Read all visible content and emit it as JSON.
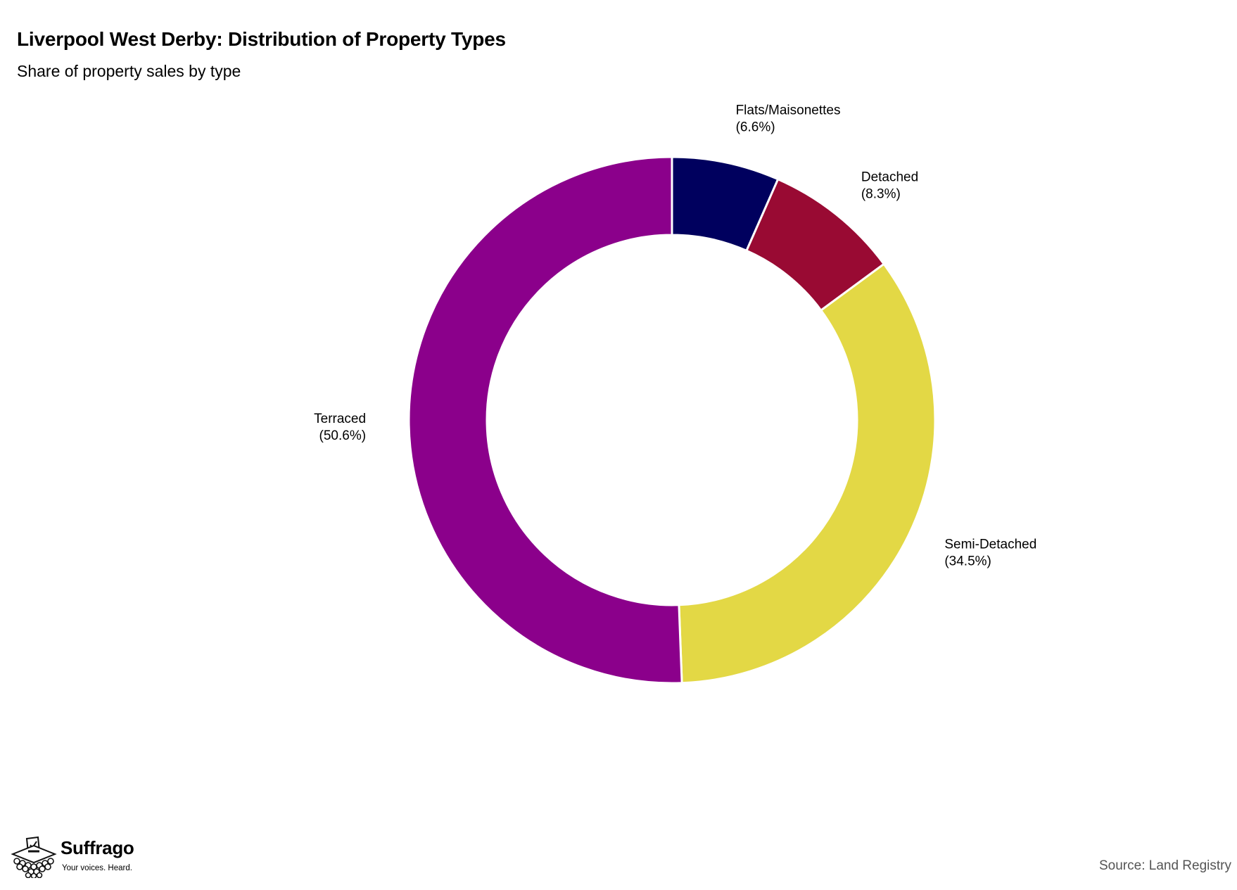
{
  "title": "Liverpool West Derby: Distribution of Property Types",
  "subtitle": "Share of property sales by type",
  "source": "Source: Land Registry",
  "branding": {
    "name": "Suffrago",
    "tagline": "Your voices. Heard.",
    "icon": "ballot-box-icon"
  },
  "chart_data": {
    "type": "pie",
    "donut": true,
    "title": "Liverpool West Derby: Distribution of Property Types",
    "subtitle": "Share of property sales by type",
    "categories": [
      "Flats/Maisonettes",
      "Detached",
      "Semi-Detached",
      "Terraced"
    ],
    "values": [
      6.6,
      8.3,
      34.5,
      50.6
    ],
    "unit": "%",
    "colors": [
      "#00005e",
      "#990a33",
      "#e3d845",
      "#8b008b"
    ],
    "labels": [
      {
        "name": "Flats/Maisonettes",
        "value": "(6.6%)"
      },
      {
        "name": "Detached",
        "value": "(8.3%)"
      },
      {
        "name": "Semi-Detached",
        "value": "(34.5%)"
      },
      {
        "name": "Terraced",
        "value": "(50.6%)"
      }
    ]
  }
}
